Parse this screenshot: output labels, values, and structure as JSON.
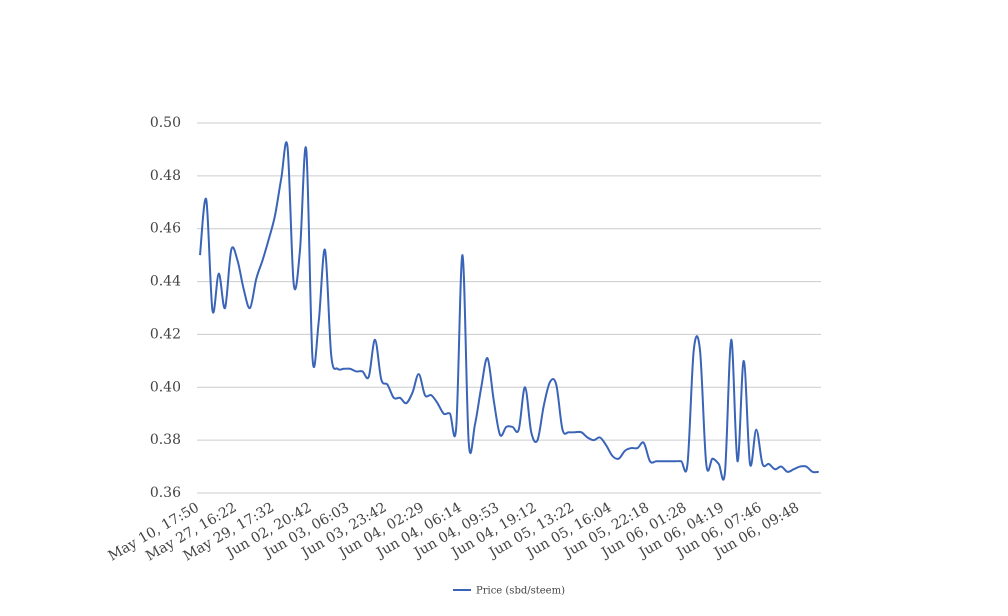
{
  "chart_data": {
    "type": "line",
    "categories": [
      "May 10, 17:50",
      null,
      null,
      null,
      null,
      null,
      "May 27, 16:22",
      null,
      null,
      null,
      null,
      null,
      "May 29, 17:32",
      null,
      null,
      null,
      null,
      null,
      "Jun 02, 20:42",
      null,
      null,
      null,
      null,
      null,
      "Jun 03, 06:03",
      null,
      null,
      null,
      null,
      null,
      "Jun 03, 23:42",
      null,
      null,
      null,
      null,
      null,
      "Jun 04, 02:29",
      null,
      null,
      null,
      null,
      null,
      "Jun 04, 06:14",
      null,
      null,
      null,
      null,
      null,
      "Jun 04, 09:53",
      null,
      null,
      null,
      null,
      null,
      "Jun 04, 19:12",
      null,
      null,
      null,
      null,
      null,
      "Jun 05, 13:22",
      null,
      null,
      null,
      null,
      null,
      "Jun 05, 16:04",
      null,
      null,
      null,
      null,
      null,
      "Jun 05, 22:18",
      null,
      null,
      null,
      null,
      null,
      "Jun 06, 01:28",
      null,
      null,
      null,
      null,
      null,
      "Jun 06, 04:19",
      null,
      null,
      null,
      null,
      null,
      "Jun 06, 07:46",
      null,
      null,
      null,
      null,
      null,
      "Jun 06, 09:48",
      null,
      null,
      null
    ],
    "series": [
      {
        "name": "Price (sbd/steem)",
        "color": "#3a64b8",
        "values": [
          0.45,
          0.471,
          0.429,
          0.443,
          0.43,
          0.452,
          0.448,
          0.437,
          0.43,
          0.441,
          0.448,
          0.456,
          0.465,
          0.479,
          0.491,
          0.439,
          0.452,
          0.49,
          0.411,
          0.425,
          0.452,
          0.412,
          0.407,
          0.407,
          0.407,
          0.406,
          0.406,
          0.404,
          0.418,
          0.403,
          0.401,
          0.396,
          0.396,
          0.394,
          0.398,
          0.405,
          0.397,
          0.397,
          0.394,
          0.39,
          0.39,
          0.385,
          0.45,
          0.379,
          0.386,
          0.4,
          0.411,
          0.395,
          0.382,
          0.385,
          0.385,
          0.384,
          0.4,
          0.383,
          0.38,
          0.393,
          0.402,
          0.401,
          0.384,
          0.383,
          0.383,
          0.383,
          0.381,
          0.38,
          0.381,
          0.378,
          0.374,
          0.373,
          0.376,
          0.377,
          0.377,
          0.379,
          0.372,
          0.372,
          0.372,
          0.372,
          0.372,
          0.372,
          0.371,
          0.414,
          0.414,
          0.371,
          0.373,
          0.371,
          0.368,
          0.418,
          0.372,
          0.41,
          0.371,
          0.384,
          0.371,
          0.371,
          0.369,
          0.37,
          0.368,
          0.369,
          0.37,
          0.37,
          0.368,
          0.368
        ]
      }
    ],
    "ylim": [
      0.36,
      0.5
    ],
    "yticks": [
      {
        "value": 0.36,
        "label": "0.36"
      },
      {
        "value": 0.38,
        "label": "0.38"
      },
      {
        "value": 0.4,
        "label": "0.40"
      },
      {
        "value": 0.42,
        "label": "0.42"
      },
      {
        "value": 0.44,
        "label": "0.44"
      },
      {
        "value": 0.46,
        "label": "0.46"
      },
      {
        "value": 0.48,
        "label": "0.48"
      },
      {
        "value": 0.5,
        "label": "0.50"
      }
    ],
    "grid": true,
    "legend": "bottom"
  }
}
